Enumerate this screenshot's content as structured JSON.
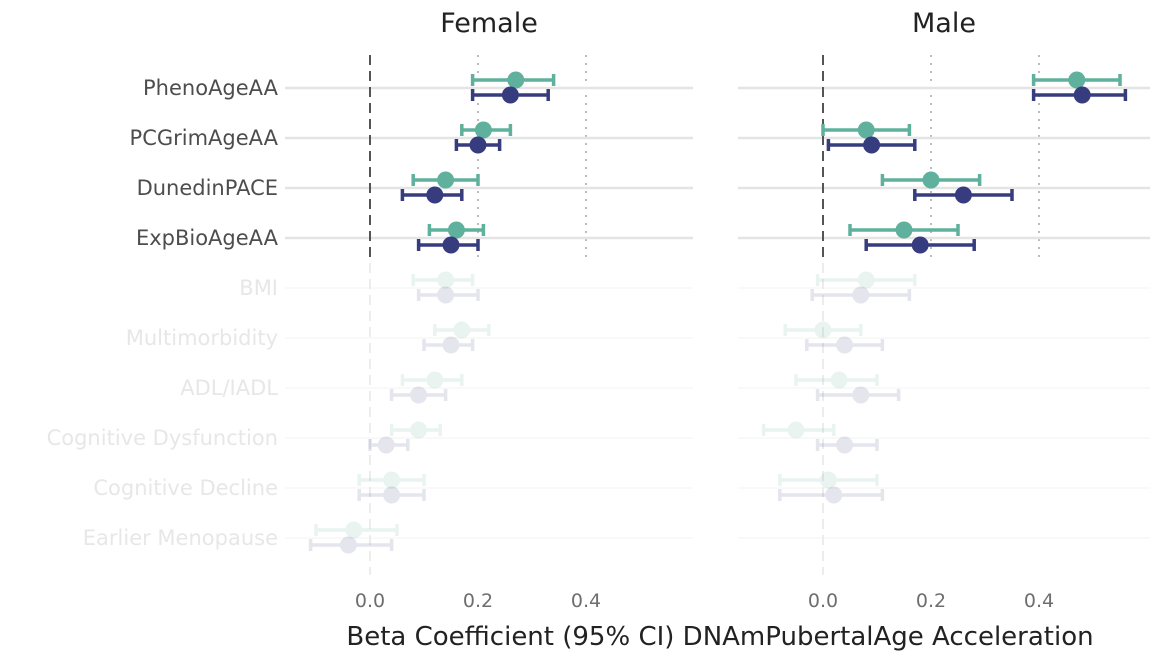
{
  "chart_data": {
    "type": "forest",
    "xlabel": "Beta Coefficient (95% CI) DNAmPubertalAge Acceleration",
    "x_ticks": [
      "0.0",
      "0.2",
      "0.4"
    ],
    "xlim": [
      -0.15,
      0.57
    ],
    "reference_line": 0,
    "grid": true,
    "categories": [
      "PhenoAgeAA",
      "PCGrimAgeAA",
      "DunedinPACE",
      "ExpBioAgeAA",
      "BMI",
      "Multimorbidity",
      "ADL/IADL",
      "Cognitive Dysfunction",
      "Cognitive Decline",
      "Earlier Menopause"
    ],
    "highlighted": [
      "PhenoAgeAA",
      "PCGrimAgeAA",
      "DunedinPACE",
      "ExpBioAgeAA"
    ],
    "series_colors": [
      "#5fb09c",
      "#363c7e"
    ],
    "panels": [
      {
        "title": "Female",
        "series": [
          {
            "values": [
              0.27,
              0.21,
              0.14,
              0.16,
              0.14,
              0.17,
              0.12,
              0.09,
              0.04,
              -0.03
            ],
            "lower": [
              0.19,
              0.17,
              0.08,
              0.11,
              0.08,
              0.12,
              0.06,
              0.04,
              -0.02,
              -0.1
            ],
            "upper": [
              0.34,
              0.26,
              0.2,
              0.21,
              0.19,
              0.22,
              0.17,
              0.13,
              0.1,
              0.05
            ]
          },
          {
            "values": [
              0.26,
              0.2,
              0.12,
              0.15,
              0.14,
              0.15,
              0.09,
              0.03,
              0.04,
              -0.04
            ],
            "lower": [
              0.19,
              0.16,
              0.06,
              0.09,
              0.09,
              0.1,
              0.04,
              0.0,
              -0.02,
              -0.11
            ],
            "upper": [
              0.33,
              0.24,
              0.17,
              0.2,
              0.2,
              0.19,
              0.14,
              0.07,
              0.1,
              0.04
            ]
          }
        ]
      },
      {
        "title": "Male",
        "series": [
          {
            "values": [
              0.47,
              0.08,
              0.2,
              0.15,
              0.08,
              0.0,
              0.03,
              -0.05,
              0.01,
              null
            ],
            "lower": [
              0.39,
              0.0,
              0.11,
              0.05,
              -0.01,
              -0.07,
              -0.05,
              -0.11,
              -0.08,
              null
            ],
            "upper": [
              0.55,
              0.16,
              0.29,
              0.25,
              0.17,
              0.07,
              0.1,
              0.02,
              0.1,
              null
            ]
          },
          {
            "values": [
              0.48,
              0.09,
              0.26,
              0.18,
              0.07,
              0.04,
              0.07,
              0.04,
              0.02,
              null
            ],
            "lower": [
              0.39,
              0.01,
              0.17,
              0.08,
              -0.02,
              -0.03,
              -0.01,
              -0.01,
              -0.08,
              null
            ],
            "upper": [
              0.56,
              0.17,
              0.35,
              0.28,
              0.16,
              0.11,
              0.14,
              0.1,
              0.11,
              null
            ]
          }
        ]
      }
    ]
  }
}
